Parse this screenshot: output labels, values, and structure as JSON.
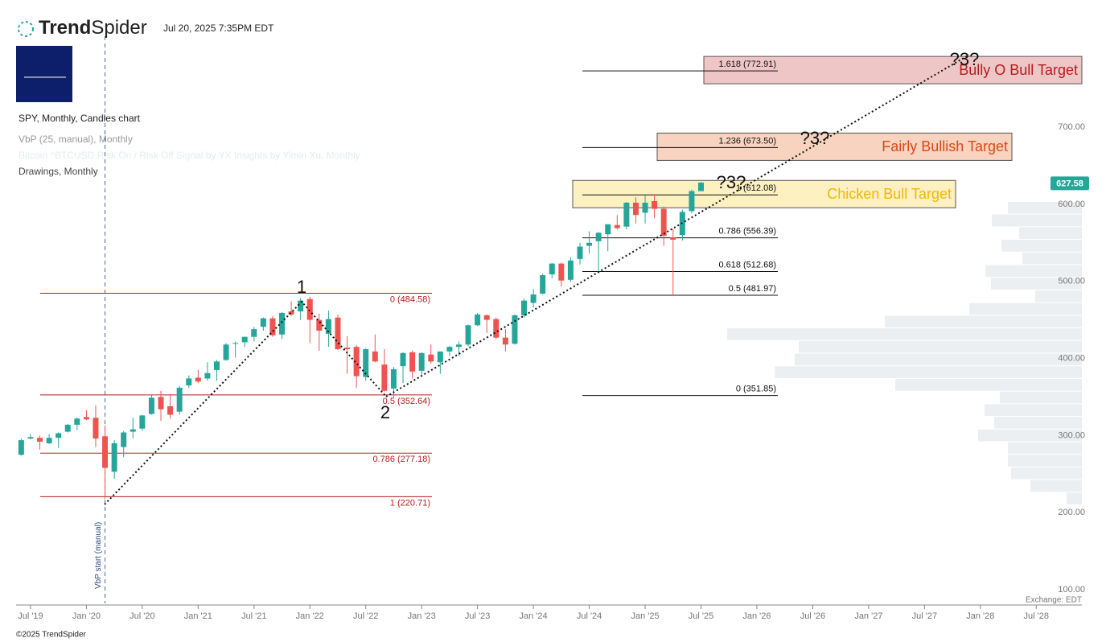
{
  "header": {
    "brand_a": "Trend",
    "brand_b": "Spider",
    "timestamp": "Jul 20, 2025 7:35PM EDT",
    "legend": [
      "SPY, Monthly, Candles chart",
      "VbP (25, manual), Monthly",
      "Bitcoin ^BTCUSD Risk On / Risk Off Signal by YX Insights by Yimin Xu, Monthly",
      "Drawings, Monthly"
    ],
    "vbp_start": "VbP start (manual)",
    "exchange": "Exchange: EDT",
    "copyright": "©2025 TrendSpider"
  },
  "chart_data": {
    "type": "candlestick",
    "up_color": "#26a69a",
    "down_color": "#ef5350",
    "x": [
      0,
      1,
      2,
      3,
      4,
      5,
      6,
      7,
      8,
      9,
      10,
      11,
      12,
      13,
      14,
      15,
      16,
      17,
      18,
      19,
      20,
      21,
      22,
      23,
      24,
      25,
      26,
      27,
      28,
      29,
      30,
      31,
      32,
      33,
      34,
      35,
      36,
      37,
      38,
      39,
      40,
      41,
      42,
      43,
      44,
      45,
      46,
      47,
      48,
      49,
      50,
      51,
      52,
      53,
      54,
      55,
      56,
      57,
      58,
      59,
      60,
      61,
      62,
      63,
      64,
      65,
      66,
      67,
      68,
      69,
      70,
      71,
      72,
      73
    ],
    "open": [
      275,
      296,
      297,
      290,
      297,
      305,
      314,
      324,
      323,
      299,
      253,
      285,
      305,
      309,
      328,
      350,
      338,
      331,
      365,
      375,
      374,
      385,
      398,
      420,
      421,
      428,
      441,
      452,
      431,
      461,
      461,
      477,
      450,
      432,
      453,
      414,
      415,
      376,
      409,
      392,
      361,
      390,
      408,
      384,
      405,
      395,
      409,
      415,
      418,
      443,
      456,
      451,
      427,
      419,
      456,
      472,
      484,
      509,
      523,
      502,
      529,
      546,
      552,
      561,
      573,
      571,
      602,
      589,
      604,
      594,
      557,
      560,
      591,
      617
    ],
    "high": [
      296,
      302,
      300,
      302,
      304,
      315,
      323,
      333,
      339,
      313,
      294,
      306,
      323,
      327,
      352,
      358,
      354,
      364,
      378,
      385,
      395,
      398,
      420,
      422,
      428,
      441,
      453,
      455,
      460,
      474,
      478,
      480,
      458,
      462,
      457,
      429,
      417,
      413,
      431,
      412,
      389,
      408,
      410,
      408,
      418,
      409,
      416,
      422,
      444,
      459,
      457,
      453,
      438,
      457,
      478,
      490,
      510,
      524,
      524,
      531,
      550,
      565,
      564,
      574,
      586,
      603,
      609,
      611,
      613,
      597,
      568,
      593,
      619,
      629
    ],
    "low": [
      274,
      295,
      282,
      289,
      284,
      304,
      307,
      320,
      285,
      218,
      244,
      272,
      296,
      306,
      327,
      319,
      322,
      327,
      362,
      368,
      371,
      371,
      397,
      401,
      415,
      422,
      436,
      428,
      425,
      455,
      450,
      420,
      410,
      415,
      411,
      380,
      362,
      371,
      395,
      357,
      348,
      368,
      374,
      377,
      393,
      380,
      403,
      403,
      416,
      442,
      433,
      425,
      409,
      418,
      453,
      466,
      483,
      504,
      493,
      499,
      522,
      536,
      510,
      539,
      567,
      567,
      575,
      575,
      582,
      546,
      481,
      553,
      588,
      617
    ],
    "close": [
      294,
      298,
      292,
      297,
      303,
      314,
      322,
      321,
      296,
      258,
      290,
      304,
      308,
      326,
      349,
      334,
      327,
      362,
      374,
      370,
      381,
      396,
      418,
      420,
      428,
      438,
      452,
      430,
      459,
      457,
      475,
      450,
      436,
      451,
      412,
      412,
      377,
      412,
      396,
      358,
      386,
      407,
      383,
      407,
      396,
      409,
      415,
      418,
      443,
      457,
      450,
      427,
      418,
      456,
      475,
      483,
      508,
      523,
      501,
      527,
      545,
      550,
      563,
      574,
      569,
      602,
      586,
      602,
      594,
      559,
      554,
      590,
      617,
      628
    ],
    "last_price": 627.58,
    "xlim": [
      -0.55,
      113.9
    ],
    "xticks": [
      {
        "value": 1,
        "label": "Jul '19"
      },
      {
        "value": 7,
        "label": "Jan '20"
      },
      {
        "value": 13,
        "label": "Jul '20"
      },
      {
        "value": 19,
        "label": "Jan '21"
      },
      {
        "value": 25,
        "label": "Jul '21"
      },
      {
        "value": 31,
        "label": "Jan '22"
      },
      {
        "value": 37,
        "label": "Jul '22"
      },
      {
        "value": 43,
        "label": "Jan '23"
      },
      {
        "value": 49,
        "label": "Jul '23"
      },
      {
        "value": 55,
        "label": "Jan '24"
      },
      {
        "value": 61,
        "label": "Jul '24"
      },
      {
        "value": 67,
        "label": "Jan '25"
      },
      {
        "value": 73,
        "label": "Jul '25"
      },
      {
        "value": 79,
        "label": "Jan '26"
      },
      {
        "value": 85,
        "label": "Jul '26"
      },
      {
        "value": 91,
        "label": "Jan '27"
      },
      {
        "value": 97,
        "label": "Jul '27"
      },
      {
        "value": 103,
        "label": "Jan '28"
      },
      {
        "value": 109,
        "label": "Jul '28"
      }
    ],
    "ylim": [
      82.3,
      844
    ],
    "yticks": [
      {
        "value": 100,
        "label": "100.00"
      },
      {
        "value": 200,
        "label": "200.00"
      },
      {
        "value": 300,
        "label": "300.00"
      },
      {
        "value": 400,
        "label": "400.00"
      },
      {
        "value": 500,
        "label": "500.00"
      },
      {
        "value": 600,
        "label": "600.00"
      },
      {
        "value": 700,
        "label": "700.00"
      }
    ],
    "fib_left": {
      "color": "#b71c1c",
      "levels": [
        {
          "value": 484.58,
          "label": "0 (484.58)"
        },
        {
          "value": 352.64,
          "label": "0.5 (352.64)"
        },
        {
          "value": 277.18,
          "label": "0.786 (277.18)"
        },
        {
          "value": 220.71,
          "label": "1 (220.71)"
        }
      ]
    },
    "fib_right": {
      "color": "#111111",
      "levels": [
        {
          "value": 772.91,
          "label": "1.618 (772.91)"
        },
        {
          "value": 673.5,
          "label": "1.236 (673.50)"
        },
        {
          "value": 612.08,
          "label": "1 (612.08)"
        },
        {
          "value": 556.39,
          "label": "0.786 (556.39)"
        },
        {
          "value": 512.68,
          "label": "0.618 (512.68)"
        },
        {
          "value": 481.97,
          "label": "0.5 (481.97)"
        },
        {
          "value": 351.85,
          "label": "0 (351.85)"
        }
      ]
    },
    "targets": [
      {
        "name": "Bully O Bull Target",
        "color": "#b71c1c",
        "fill": "#efc6c6"
      },
      {
        "name": "Fairly Bullish Target",
        "color": "#d84b16",
        "fill": "#f8d3bf"
      },
      {
        "name": "Chicken Bull Target",
        "color": "#f2b705",
        "fill": "#fdf1c2"
      }
    ],
    "annotations": [
      "1",
      "2",
      "?3?",
      "?3?",
      "?3?"
    ],
    "volume_profile": {
      "color": "#eceff1",
      "vlim": [
        0,
        500
      ],
      "bins": [
        210,
        226.4,
        242.8,
        259.2,
        275.6,
        292,
        308.4,
        324.8,
        341.2,
        357.6,
        374,
        390.4,
        406.8,
        423.2,
        439.6,
        456,
        472.4,
        488.8,
        505.2,
        521.6,
        538,
        554.4,
        570.8,
        587.2,
        603.6
      ],
      "values": [
        19,
        64,
        88,
        92,
        92,
        129,
        109,
        121,
        102,
        232,
        382,
        357,
        352,
        441,
        245,
        140,
        58,
        113,
        120,
        74,
        100,
        78,
        112,
        92
      ]
    }
  }
}
